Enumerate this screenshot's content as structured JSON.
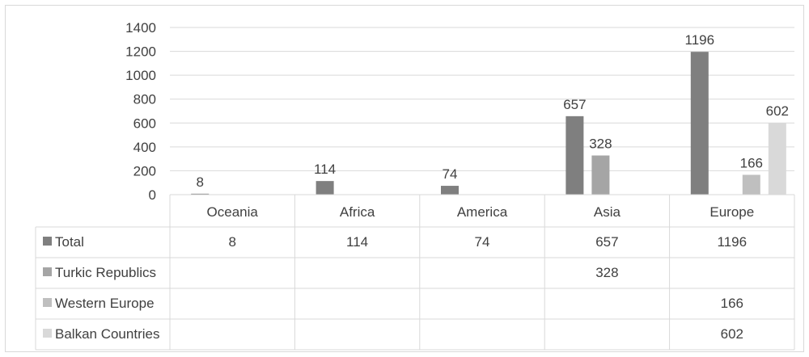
{
  "chart_data": {
    "type": "bar",
    "categories": [
      "Oceania",
      "Africa",
      "America",
      "Asia",
      "Europe"
    ],
    "series": [
      {
        "name": "Total",
        "values": [
          8,
          114,
          74,
          657,
          1196
        ],
        "color": "#7f7f7f"
      },
      {
        "name": "Turkic Republics",
        "values": [
          null,
          null,
          null,
          328,
          null
        ],
        "color": "#a5a5a5"
      },
      {
        "name": "Western Europe",
        "values": [
          null,
          null,
          null,
          null,
          166
        ],
        "color": "#bfbfbf"
      },
      {
        "name": "Balkan Countries",
        "values": [
          null,
          null,
          null,
          null,
          602
        ],
        "color": "#d9d9d9"
      }
    ],
    "yticks": [
      0,
      200,
      400,
      600,
      800,
      1000,
      1200,
      1400
    ],
    "ylim": [
      0,
      1400
    ],
    "grid": true,
    "legend": "data-table"
  }
}
